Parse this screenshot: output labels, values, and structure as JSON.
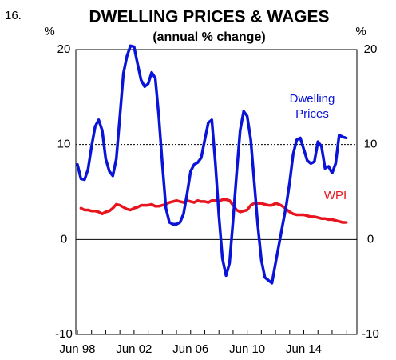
{
  "chart_data": {
    "type": "line",
    "number": "16.",
    "title": "DWELLING PRICES & WAGES",
    "subtitle": "(annual % change)",
    "y_label": "%",
    "y2_label": "%",
    "categories": [
      "Jun 98",
      null,
      null,
      null,
      null,
      null,
      null,
      null,
      null,
      null,
      null,
      null,
      null,
      null,
      null,
      null,
      "Jun 02",
      null,
      null,
      null,
      null,
      null,
      null,
      null,
      null,
      null,
      null,
      null,
      null,
      null,
      null,
      null,
      "Jun 06",
      null,
      null,
      null,
      null,
      null,
      null,
      null,
      null,
      null,
      null,
      null,
      null,
      null,
      null,
      null,
      "Jun 10",
      null,
      null,
      null,
      null,
      null,
      null,
      null,
      null,
      null,
      null,
      null,
      null,
      null,
      null,
      null,
      "Jun 14",
      null,
      null,
      null,
      null,
      null,
      null,
      null,
      null,
      null,
      null,
      null,
      null
    ],
    "series": [
      {
        "name": "Dwelling Prices",
        "color": "#0a14d8",
        "values": [
          7.9,
          6.4,
          6.3,
          7.4,
          9.8,
          11.9,
          12.6,
          11.5,
          8.5,
          7.2,
          6.7,
          8.5,
          13,
          17.5,
          19.3,
          20.4,
          20.3,
          18.5,
          16.8,
          16.1,
          16.4,
          17.6,
          17,
          13,
          8,
          3.3,
          1.8,
          1.6,
          1.6,
          1.8,
          2.7,
          4.8,
          7.2,
          7.9,
          8.1,
          8.6,
          10.5,
          12.3,
          12.6,
          8,
          2.5,
          -2,
          -3.8,
          -2.5,
          2,
          7,
          11.5,
          13.5,
          13,
          10.5,
          6,
          1.5,
          -2.2,
          -4,
          -4.3,
          -4.6,
          -2.5,
          -0.5,
          1.5,
          3.5,
          6,
          9,
          10.5,
          10.7,
          9.5,
          8.3,
          8,
          8.2,
          10.3,
          9.8,
          7.5,
          7.7,
          7,
          8,
          11,
          10.8,
          10.7
        ]
      },
      {
        "name": "WPI",
        "color": "#e8141e",
        "values": [
          null,
          3.3,
          3.1,
          3.1,
          3.0,
          3.0,
          2.9,
          2.7,
          2.9,
          3.0,
          3.3,
          3.7,
          3.6,
          3.4,
          3.2,
          3.1,
          3.3,
          3.4,
          3.6,
          3.6,
          3.6,
          3.7,
          3.5,
          3.5,
          3.6,
          3.7,
          3.9,
          4.0,
          4.1,
          4.0,
          3.9,
          4.1,
          4.0,
          3.9,
          4.1,
          4.0,
          4.0,
          3.9,
          4.1,
          4.1,
          4.0,
          4.2,
          4.2,
          4.1,
          3.6,
          3.1,
          2.9,
          3.0,
          3.1,
          3.6,
          3.8,
          3.8,
          3.8,
          3.7,
          3.6,
          3.6,
          3.8,
          3.7,
          3.5,
          3.2,
          2.9,
          2.7,
          2.6,
          2.6,
          2.6,
          2.5,
          2.4,
          2.4,
          2.3,
          2.2,
          2.2,
          2.1,
          2.1,
          2.0,
          1.9,
          1.8,
          1.8
        ]
      }
    ],
    "ylim": [
      -10,
      20
    ],
    "yticks": [
      -10,
      0,
      10,
      20
    ],
    "y2lim": [
      -10,
      20
    ],
    "y2ticks": [
      -10,
      0,
      10,
      20
    ],
    "grid": true
  }
}
